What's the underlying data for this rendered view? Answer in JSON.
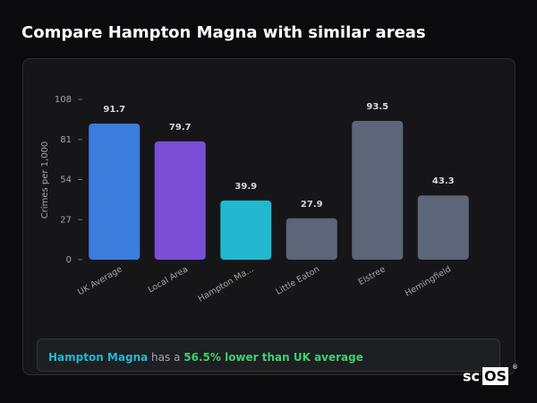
{
  "page": {
    "title": "Compare Hampton Magna with similar areas"
  },
  "chart_data": {
    "type": "bar",
    "y_label": "Crimes per 1,000",
    "categories": [
      "UK Average",
      "Local Area",
      "Hampton Ma...",
      "Little Eaton",
      "Elstree",
      "Hemingfield"
    ],
    "values": [
      91.7,
      79.7,
      39.9,
      27.9,
      93.5,
      43.3
    ],
    "colors": [
      "#3b7ddd",
      "#7b4fd6",
      "#22b8cf",
      "#5c6678",
      "#5c6678",
      "#5c6678"
    ],
    "ylim": [
      0,
      108
    ],
    "yticks": [
      0,
      27,
      54,
      81,
      108
    ]
  },
  "footer": {
    "area": "Hampton Magna",
    "text": "has a",
    "highlight": "56.5% lower than UK average"
  },
  "logo": {
    "prefix": "sc",
    "boxed": "OS",
    "mark": "®"
  }
}
